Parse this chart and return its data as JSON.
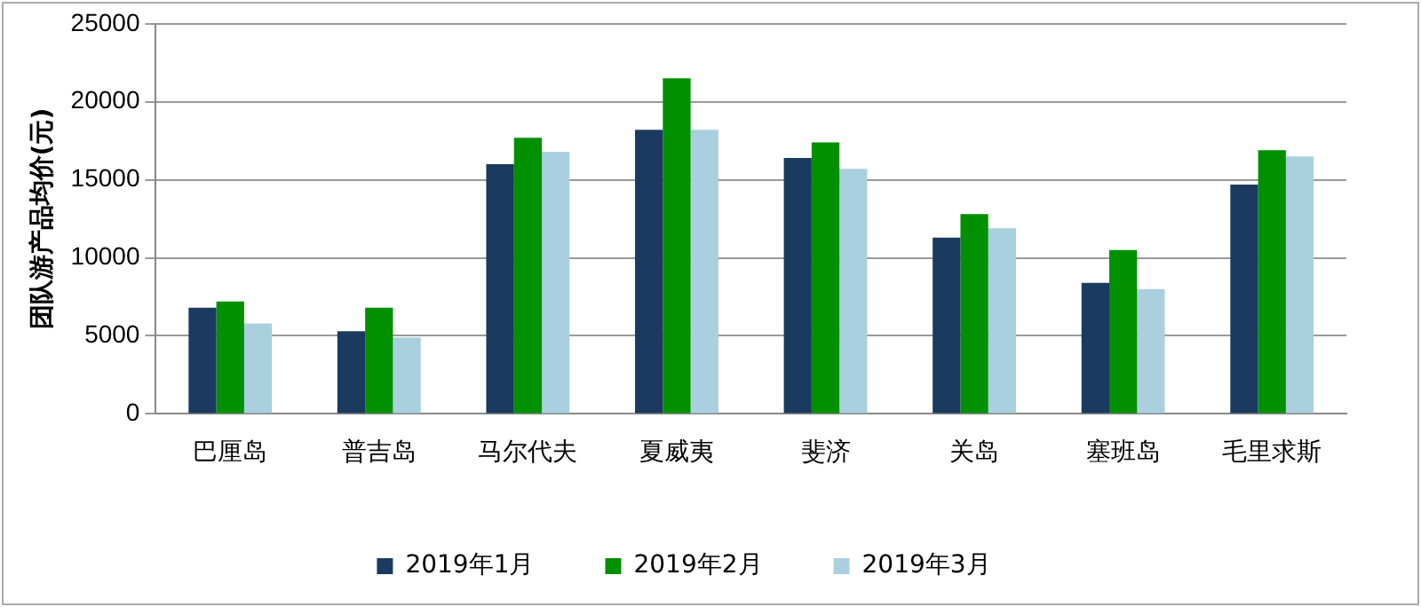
{
  "chart_data": {
    "type": "bar",
    "ylabel": "团队游产品均价(元)",
    "categories": [
      "巴厘岛",
      "普吉岛",
      "马尔代夫",
      "夏威夷",
      "斐济",
      "关岛",
      "塞班岛",
      "毛里求斯"
    ],
    "series": [
      {
        "name": "2019年1月",
        "color": "#1a3a5f",
        "values": [
          6800,
          5300,
          16000,
          18200,
          16400,
          11300,
          8400,
          14700
        ]
      },
      {
        "name": "2019年2月",
        "color": "#009000",
        "values": [
          7200,
          6800,
          17700,
          21500,
          17400,
          12800,
          10500,
          16900
        ]
      },
      {
        "name": "2019年3月",
        "color": "#aacfdf",
        "values": [
          5800,
          4900,
          16800,
          18200,
          15700,
          11900,
          8000,
          16500
        ]
      }
    ],
    "ylim": [
      0,
      25000
    ],
    "yticks": [
      0,
      5000,
      10000,
      15000,
      20000,
      25000
    ],
    "grid": "y",
    "legend": "bottom"
  }
}
